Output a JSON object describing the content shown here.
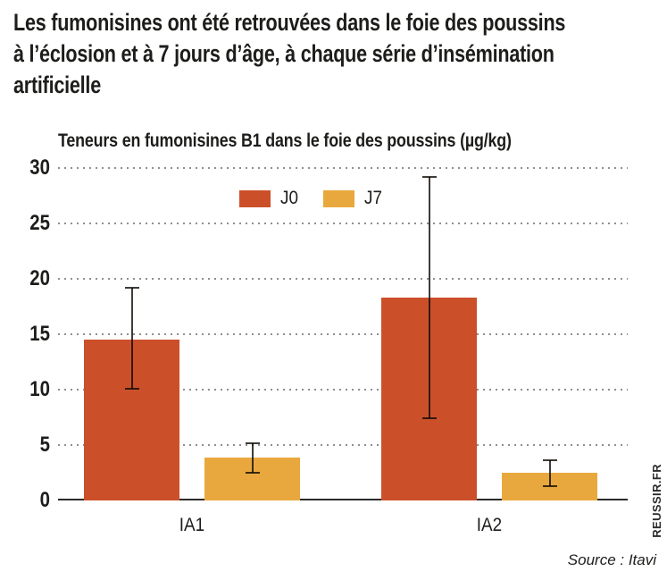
{
  "header": {
    "title_lines": [
      "Les fumonisines ont été retrouvées dans le foie des poussins",
      "à l’éclosion et à 7 jours d’âge, à chaque série d’insémination",
      "artificielle"
    ]
  },
  "chart_data": {
    "type": "bar",
    "title": "Teneurs en fumonisines B1 dans le foie des poussins (µg/kg)",
    "categories": [
      "IA1",
      "IA2"
    ],
    "series": [
      {
        "name": "J0",
        "color": "#cb502a",
        "values": [
          14.5,
          18.3
        ],
        "error_low": [
          10.1,
          7.4
        ],
        "error_high": [
          19.2,
          29.2
        ]
      },
      {
        "name": "J7",
        "color": "#e9a83d",
        "values": [
          3.9,
          2.5
        ],
        "error_low": [
          2.5,
          1.3
        ],
        "error_high": [
          5.2,
          3.6
        ]
      }
    ],
    "xlabel": "",
    "ylabel": "",
    "ylim": [
      0,
      30
    ],
    "yticks": [
      0,
      5,
      10,
      15,
      20,
      25,
      30
    ],
    "grid": "dotted-horizontal",
    "legend_position": "top-center"
  },
  "footer": {
    "watermark": "REUSSIR.FR",
    "source": "Source : Itavi"
  },
  "colors": {
    "j0": "#cb502a",
    "j7": "#e9a83d",
    "text": "#1d1d1b",
    "grid": "#8f8f8f",
    "axis": "#2b2b2b",
    "error_bar": "#333333"
  }
}
